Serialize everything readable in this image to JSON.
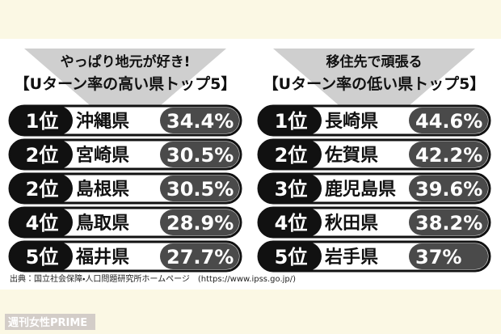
{
  "panels": [
    {
      "subtitle": "やっぱり地元が好き!",
      "title": "【Uターン率の高い県トップ5】",
      "rows": [
        [
          "1位",
          "沖縄県",
          "34.4%"
        ],
        [
          "2位",
          "宮崎県",
          "30.5%"
        ],
        [
          "2位",
          "島根県",
          "30.5%"
        ],
        [
          "4位",
          "鳥取県",
          "28.9%"
        ],
        [
          "5位",
          "福井県",
          "27.7%"
        ]
      ]
    },
    {
      "subtitle": "移住先で頑張る",
      "title": "【Uターン率の低い県トップ5】",
      "rows": [
        [
          "1位",
          "長崎県",
          "44.6%"
        ],
        [
          "2位",
          "佐賀県",
          "42.2%"
        ],
        [
          "3位",
          "鹿児島県",
          "39.6%"
        ],
        [
          "4位",
          "秋田県",
          "38.2%"
        ],
        [
          "5位",
          "岩手県",
          "37%"
        ]
      ]
    }
  ],
  "source": "出典：国立社会保障・人口問題研究所ホームページ　(https://www.ipss.go.jp/)",
  "watermark": "週刊女性PRIME"
}
